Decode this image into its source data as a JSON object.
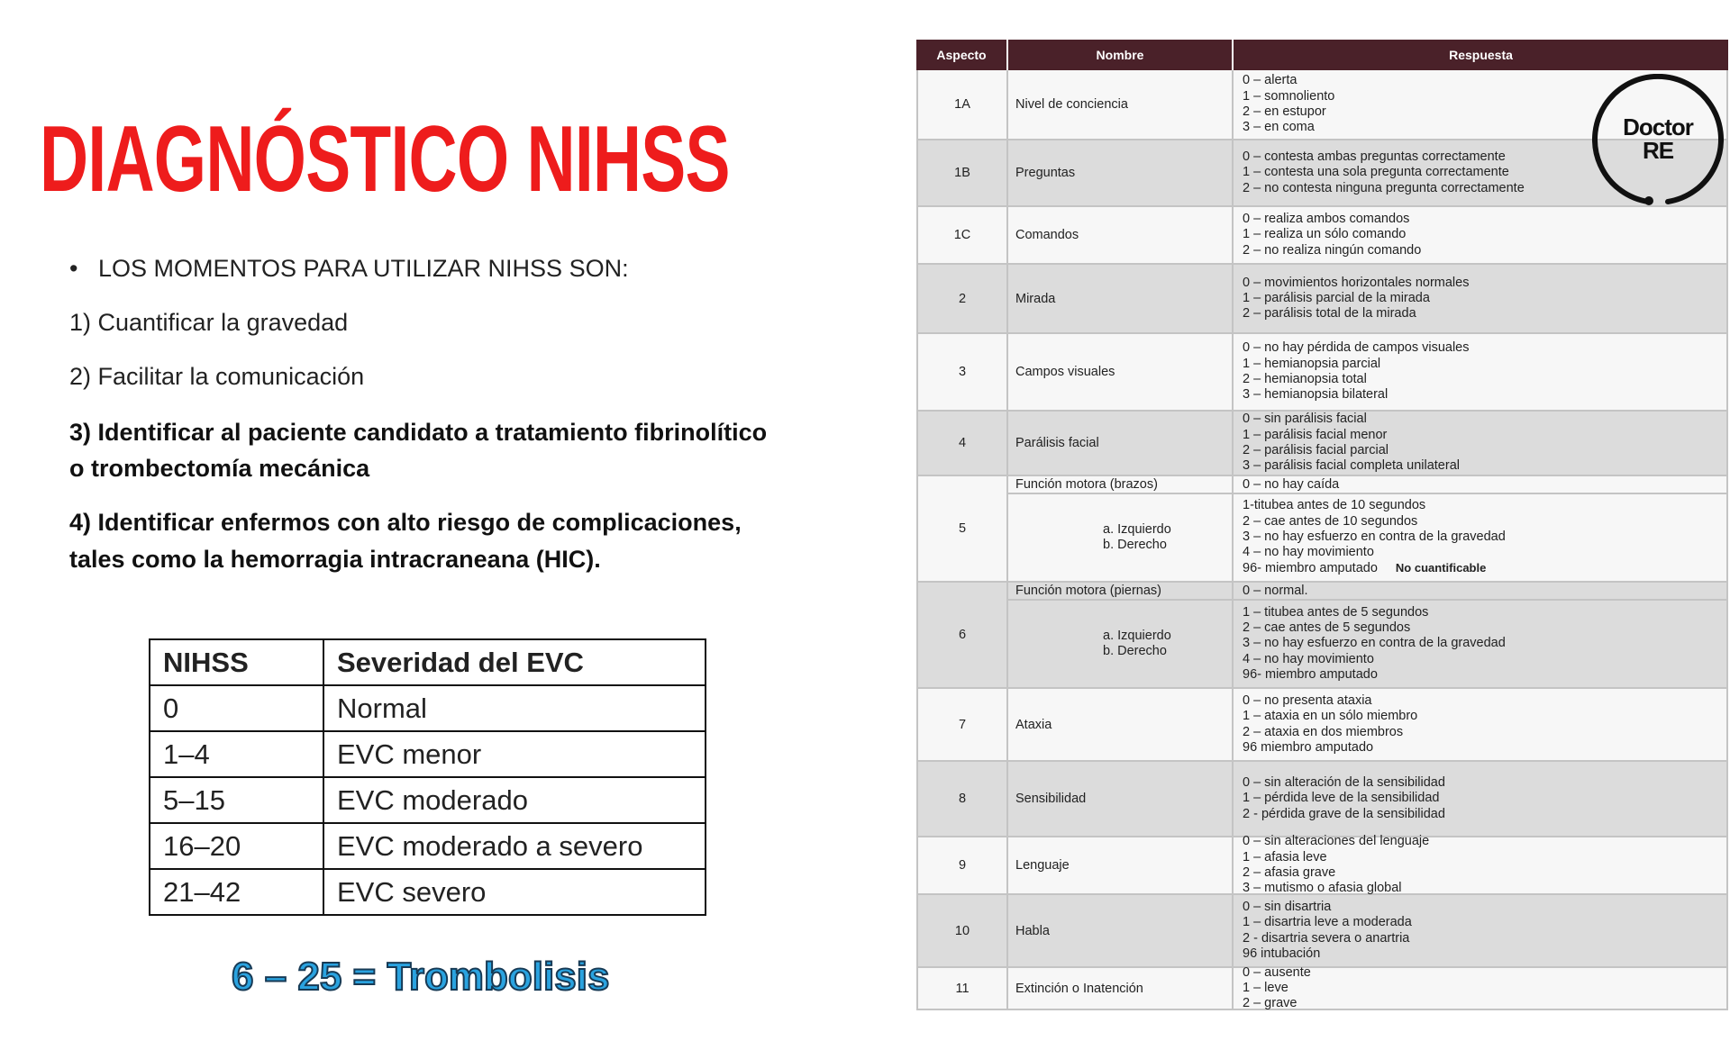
{
  "title": "DIAGNÓSTICO NIHSS",
  "intro": {
    "bullet": "LOS MOMENTOS PARA UTILIZAR NIHSS SON:",
    "points": [
      "1) Cuantificar la gravedad",
      "2) Facilitar la comunicación",
      "3) Identificar al paciente candidato a tratamiento fibrinolítico",
      "o trombectomía mecánica",
      "4) Identificar enfermos con alto riesgo de complicaciones,",
      "tales como la hemorragia intracraneana (HIC)."
    ]
  },
  "severity_table": {
    "headers": [
      "NIHSS",
      "Severidad del EVC"
    ],
    "rows": [
      [
        "0",
        "Normal"
      ],
      [
        "1–4",
        "EVC menor"
      ],
      [
        "5–15",
        "EVC moderado"
      ],
      [
        "16–20",
        "EVC moderado a severo"
      ],
      [
        "21–42",
        "EVC severo"
      ]
    ]
  },
  "thrombolysis_note": "6 – 25 = Trombolisis",
  "nihss_table": {
    "header_color": "#4a2129",
    "headers": [
      "Aspecto",
      "Nombre",
      "Respuesta"
    ],
    "rows": [
      {
        "aspect": "1A",
        "name": "Nivel de conciencia",
        "responses": [
          "0 – alerta",
          "1 – somnoliento",
          "2 – en estupor",
          "3 – en coma"
        ]
      },
      {
        "aspect": "1B",
        "name": "Preguntas",
        "responses": [
          "0 – contesta ambas preguntas correctamente",
          "1 – contesta una sola pregunta correctamente",
          "2 – no contesta ninguna pregunta correctamente"
        ]
      },
      {
        "aspect": "1C",
        "name": "Comandos",
        "responses": [
          "0 – realiza ambos comandos",
          "1 – realiza un sólo comando",
          "2 – no realiza ningún comando"
        ]
      },
      {
        "aspect": "2",
        "name": "Mirada",
        "responses": [
          "0 – movimientos horizontales normales",
          "1 – parálisis parcial de la mirada",
          "2 – parálisis total de la mirada"
        ]
      },
      {
        "aspect": "3",
        "name": "Campos visuales",
        "responses": [
          "0 – no hay pérdida de campos visuales",
          "1 – hemianopsia parcial",
          "2 – hemianopsia total",
          "3 – hemianopsia bilateral"
        ]
      },
      {
        "aspect": "4",
        "name": "Parálisis facial",
        "responses": [
          "0 – sin parálisis facial",
          "1 – parálisis facial menor",
          "2 – parálisis facial parcial",
          "3 – parálisis facial completa unilateral"
        ]
      },
      {
        "aspect": "5",
        "name": "Función motora (brazos)",
        "first_response": "0 – no hay caída",
        "sides": [
          "a.   Izquierdo",
          "b.   Derecho"
        ],
        "responses": [
          "1-titubea antes de 10 segundos",
          "2 – cae antes de 10 segundos",
          "3 – no hay esfuerzo en contra de la gravedad",
          "4 – no hay movimiento",
          "96- miembro amputado"
        ],
        "note": "No cuantificable"
      },
      {
        "aspect": "6",
        "name": "Función motora (piernas)",
        "first_response": "0 – normal.",
        "sides": [
          "a.   Izquierdo",
          "b.   Derecho"
        ],
        "responses": [
          "1 – titubea antes de 5 segundos",
          "2 – cae antes de 5 segundos",
          "3 – no hay esfuerzo en contra de la gravedad",
          "4 – no hay movimiento",
          "96- miembro amputado"
        ]
      },
      {
        "aspect": "7",
        "name": "Ataxia",
        "responses": [
          "0 – no presenta ataxia",
          "1 – ataxia en un sólo miembro",
          "2 – ataxia en dos miembros",
          "96 miembro amputado"
        ]
      },
      {
        "aspect": "8",
        "name": "Sensibilidad",
        "responses": [
          "0 – sin alteración de la sensibilidad",
          "1 – pérdida leve de la sensibilidad",
          "2 - pérdida grave de la sensibilidad"
        ]
      },
      {
        "aspect": "9",
        "name": "Lenguaje",
        "responses": [
          "0 – sin alteraciones del lenguaje",
          "1 – afasia leve",
          "2 – afasia grave",
          "3 – mutismo o afasia global"
        ]
      },
      {
        "aspect": "10",
        "name": "Habla",
        "responses": [
          "0 – sin disartria",
          "1 – disartria leve a moderada",
          "2 - disartria severa o anartria",
          "96 intubación"
        ]
      },
      {
        "aspect": "11",
        "name": "Extinción o Inatención",
        "responses": [
          "0 – ausente",
          "1 – leve",
          "2 – grave"
        ]
      }
    ]
  },
  "logo": {
    "text_line1": "Doctor",
    "text_line2": "RE"
  }
}
